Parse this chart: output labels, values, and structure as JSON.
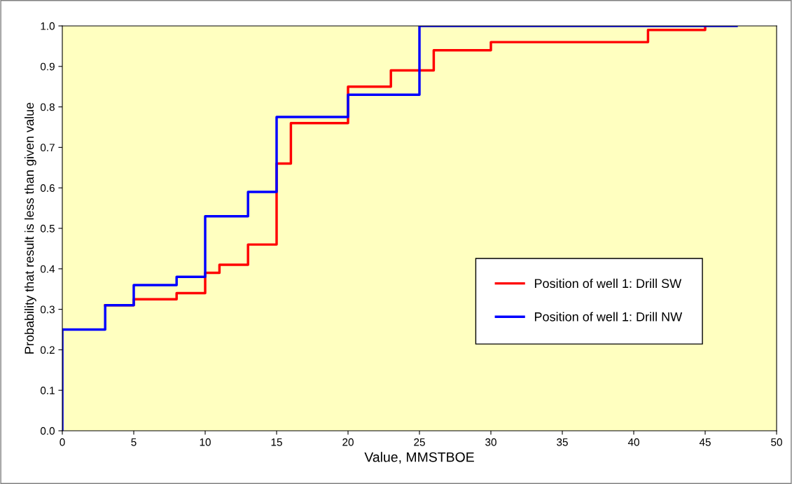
{
  "chart_data": {
    "type": "step",
    "xlabel": "Value, MMSTBOE",
    "ylabel": "Probability that result is less than given value",
    "series": [
      {
        "name": "Position of well 1: Drill SW",
        "color": "#ff0000",
        "x": [
          3,
          5,
          8,
          10,
          11,
          13,
          15,
          16,
          20,
          23,
          26,
          30,
          41,
          45
        ],
        "values": [
          0.31,
          0.325,
          0.34,
          0.39,
          0.41,
          0.46,
          0.66,
          0.76,
          0.85,
          0.89,
          0.94,
          0.96,
          0.99,
          1.0
        ]
      },
      {
        "name": "Position of well 1: Drill NW",
        "color": "#0000ff",
        "x": [
          0,
          0,
          3,
          5,
          8,
          10,
          13,
          15,
          20,
          25,
          47.2
        ],
        "values": [
          0,
          0.25,
          0.31,
          0.36,
          0.38,
          0.53,
          0.59,
          0.775,
          0.83,
          1.0,
          1.0
        ]
      }
    ],
    "xlim": [
      0,
      50
    ],
    "xticks": [
      0,
      5,
      10,
      15,
      20,
      25,
      30,
      35,
      40,
      45,
      50
    ],
    "ylim": [
      0.0,
      1.0
    ],
    "yticks": [
      {
        "value": 0,
        "label": "0.0"
      },
      0.1,
      0.2,
      0.3,
      0.4,
      0.5,
      0.6,
      0.7,
      0.8,
      0.9,
      {
        "value": 1,
        "label": "1.0"
      }
    ],
    "grid": false,
    "legend": "right",
    "marker": "none",
    "line_style": "solid"
  }
}
